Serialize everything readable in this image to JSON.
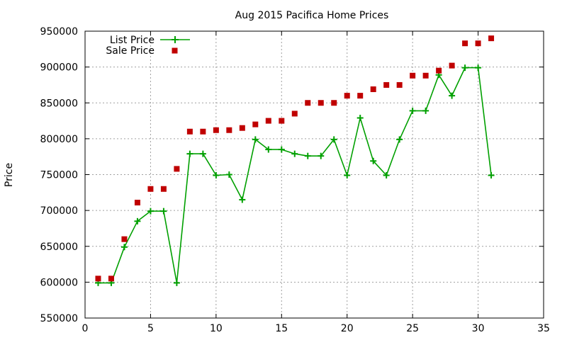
{
  "chart_data": {
    "type": "line",
    "title": "Aug 2015 Pacifica Home Prices",
    "xlabel": "",
    "ylabel": "Price",
    "xlim": [
      0,
      35
    ],
    "ylim": [
      550000,
      950000
    ],
    "xticks": [
      0,
      5,
      10,
      15,
      20,
      25,
      30,
      35
    ],
    "yticks": [
      550000,
      600000,
      650000,
      700000,
      750000,
      800000,
      850000,
      900000,
      950000
    ],
    "grid": true,
    "legend_position": "top-left",
    "series": [
      {
        "name": "List Price",
        "style": "lines+crosses",
        "color": "#00a000",
        "x": [
          1,
          2,
          3,
          4,
          5,
          6,
          7,
          8,
          9,
          10,
          11,
          12,
          13,
          14,
          15,
          16,
          17,
          18,
          19,
          20,
          21,
          22,
          23,
          24,
          25,
          26,
          27,
          28,
          29,
          30,
          31
        ],
        "y": [
          599000,
          599000,
          649000,
          685000,
          699000,
          699000,
          599000,
          779000,
          779000,
          749000,
          750000,
          715000,
          799000,
          785000,
          785000,
          779000,
          776000,
          776000,
          799000,
          749000,
          829000,
          769000,
          749000,
          799000,
          839000,
          839000,
          889000,
          860000,
          899000,
          899000,
          749000
        ]
      },
      {
        "name": "Sale Price",
        "style": "squares",
        "color": "#c00000",
        "x": [
          1,
          2,
          3,
          4,
          5,
          6,
          7,
          8,
          9,
          10,
          11,
          12,
          13,
          14,
          15,
          16,
          17,
          18,
          19,
          20,
          21,
          22,
          23,
          24,
          25,
          26,
          27,
          28,
          29,
          30,
          31
        ],
        "y": [
          605000,
          605000,
          660000,
          711000,
          730000,
          730000,
          758000,
          810000,
          810000,
          812000,
          812000,
          815000,
          820000,
          825000,
          825000,
          835000,
          850000,
          850000,
          850000,
          860000,
          860000,
          869000,
          875000,
          875000,
          888000,
          888000,
          895000,
          902000,
          933000,
          933000,
          940000
        ]
      }
    ]
  }
}
